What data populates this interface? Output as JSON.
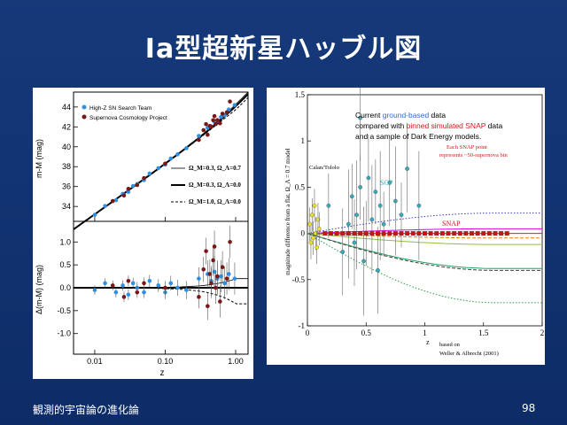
{
  "slide": {
    "title": "Ia型超新星ハッブル図",
    "footer_left": "観測的宇宙論の進化論",
    "page_number": "98"
  },
  "chart_data": [
    {
      "type": "scatter",
      "title": "",
      "xscale": "log",
      "xlim": [
        0.005,
        1.5
      ],
      "xlabel": "z",
      "x_ticks": [
        "0.01",
        "0.10",
        "1.00"
      ],
      "top": {
        "ylabel": "m-M (mag)",
        "ylim": [
          32.5,
          45.5
        ],
        "y_ticks": [
          "34",
          "36",
          "38",
          "40",
          "42",
          "44"
        ],
        "legend_series": [
          "High-Z SN Search Team",
          "Supernova Cosmology Project"
        ],
        "legend_models": [
          {
            "label": "Ω_M=0.3, Ω_Λ=0.7",
            "style": "solid-thin"
          },
          {
            "label": "Ω_M=0.3, Ω_Λ=0.0",
            "style": "solid-thick"
          },
          {
            "label": "Ω_M=1.0, Ω_Λ=0.0",
            "style": "dashed"
          }
        ]
      },
      "bottom": {
        "ylabel": "Δ(m-M) (mag)",
        "ylim": [
          -1.45,
          1.45
        ],
        "y_ticks": [
          "1.0",
          "0.5",
          "0.0",
          "-0.5",
          "-1.0"
        ]
      },
      "series": [
        {
          "name": "High-Z SN Search Team",
          "color": "#2f8fe0",
          "points": [
            [
              0.01,
              -0.05
            ],
            [
              0.014,
              0.1
            ],
            [
              0.02,
              -0.1
            ],
            [
              0.025,
              0.05
            ],
            [
              0.03,
              -0.15
            ],
            [
              0.035,
              0.1
            ],
            [
              0.04,
              0.0
            ],
            [
              0.05,
              -0.1
            ],
            [
              0.06,
              0.15
            ],
            [
              0.08,
              0.05
            ],
            [
              0.1,
              -0.1
            ],
            [
              0.12,
              0.1
            ],
            [
              0.15,
              0.0
            ],
            [
              0.2,
              -0.05
            ],
            [
              0.3,
              0.2
            ],
            [
              0.4,
              0.3
            ],
            [
              0.45,
              0.15
            ],
            [
              0.5,
              0.35
            ],
            [
              0.55,
              0.2
            ],
            [
              0.62,
              0.25
            ],
            [
              0.7,
              0.1
            ],
            [
              0.8,
              0.3
            ],
            [
              0.97,
              0.2
            ]
          ]
        },
        {
          "name": "Supernova Cosmology Project",
          "color": "#7a1616",
          "points": [
            [
              0.018,
              0.05
            ],
            [
              0.026,
              -0.2
            ],
            [
              0.03,
              0.15
            ],
            [
              0.04,
              -0.1
            ],
            [
              0.05,
              0.1
            ],
            [
              0.1,
              0.0
            ],
            [
              0.3,
              -0.2
            ],
            [
              0.35,
              0.4
            ],
            [
              0.38,
              0.8
            ],
            [
              0.4,
              -0.4
            ],
            [
              0.43,
              0.3
            ],
            [
              0.45,
              0.1
            ],
            [
              0.48,
              0.6
            ],
            [
              0.5,
              0.9
            ],
            [
              0.52,
              0.0
            ],
            [
              0.55,
              0.25
            ],
            [
              0.6,
              -0.3
            ],
            [
              0.65,
              0.45
            ],
            [
              0.75,
              0.2
            ],
            [
              0.83,
              1.0
            ]
          ]
        }
      ],
      "models": [
        {
          "label": "Ω_M=0.3, Ω_Λ=0.7",
          "residual_at_z1": 0.2
        },
        {
          "label": "Ω_M=0.3, Ω_Λ=0.0",
          "residual_at_z1": 0.0
        },
        {
          "label": "Ω_M=1.0, Ω_Λ=0.0",
          "residual_at_z1": -0.35
        }
      ]
    },
    {
      "type": "scatter",
      "title": "",
      "xlim": [
        0,
        2
      ],
      "ylim": [
        -1,
        1.5
      ],
      "x_ticks": [
        "0",
        "0.5",
        "1",
        "1.5",
        "2"
      ],
      "y_ticks": [
        "1.5",
        "1",
        "0.5",
        "0",
        "-0.5",
        "-1"
      ],
      "xlabel": "z",
      "ylabel": "magnitude difference from a flat, Ω_Λ = 0.7 model",
      "description_lines": [
        {
          "prefix": "Current ",
          "highlight": "ground-based",
          "suffix": " data",
          "color": "#2f6fd0"
        },
        {
          "prefix": "compared with ",
          "highlight": "binned simulated SNAP",
          "suffix": " data",
          "color": "#d01818"
        },
        {
          "prefix": "and a sample of Dark Energy models.",
          "highlight": "",
          "suffix": "",
          "color": "#000000"
        }
      ],
      "note_lines": [
        "Each SNAP point",
        "represents ~50-supernova bin"
      ],
      "labels": {
        "calan": "Calan/Tololo",
        "scp": "SCP",
        "snap": "SNAP"
      },
      "credit_lines": [
        "based on",
        "Weller & Albrecht (2001)"
      ],
      "series": [
        {
          "name": "Calan/Tololo",
          "color": "#f0e020",
          "points": [
            [
              0.02,
              0.1
            ],
            [
              0.03,
              -0.1
            ],
            [
              0.04,
              0.2
            ],
            [
              0.05,
              -0.05
            ],
            [
              0.06,
              0.3
            ],
            [
              0.07,
              0.0
            ],
            [
              0.08,
              -0.15
            ],
            [
              0.09,
              0.15
            ],
            [
              0.1,
              0.05
            ]
          ]
        },
        {
          "name": "SCP",
          "color": "#3aa8b8",
          "points": [
            [
              0.18,
              0.3
            ],
            [
              0.3,
              -0.2
            ],
            [
              0.35,
              0.1
            ],
            [
              0.38,
              0.4
            ],
            [
              0.4,
              -0.1
            ],
            [
              0.42,
              0.2
            ],
            [
              0.45,
              0.5
            ],
            [
              0.45,
              1.25
            ],
            [
              0.48,
              -0.3
            ],
            [
              0.5,
              0.0
            ],
            [
              0.52,
              0.6
            ],
            [
              0.55,
              0.15
            ],
            [
              0.58,
              0.45
            ],
            [
              0.6,
              -0.4
            ],
            [
              0.62,
              0.3
            ],
            [
              0.65,
              0.1
            ],
            [
              0.7,
              0.55
            ],
            [
              0.75,
              0.35
            ],
            [
              0.8,
              0.2
            ],
            [
              0.85,
              0.7
            ],
            [
              0.95,
              0.3
            ]
          ]
        },
        {
          "name": "SNAP",
          "color": "#c01818",
          "points": [
            [
              0.15,
              0.0
            ],
            [
              0.2,
              0.0
            ],
            [
              0.25,
              0.0
            ],
            [
              0.3,
              0.0
            ],
            [
              0.35,
              0.0
            ],
            [
              0.4,
              0.0
            ],
            [
              0.45,
              0.0
            ],
            [
              0.5,
              0.0
            ],
            [
              0.55,
              0.0
            ],
            [
              0.6,
              0.0
            ],
            [
              0.65,
              0.0
            ],
            [
              0.7,
              0.0
            ],
            [
              0.75,
              0.0
            ],
            [
              0.8,
              0.0
            ],
            [
              0.85,
              0.0
            ],
            [
              0.9,
              0.0
            ],
            [
              0.95,
              0.0
            ],
            [
              1.0,
              0.0
            ],
            [
              1.05,
              0.0
            ],
            [
              1.1,
              0.0
            ],
            [
              1.15,
              0.0
            ],
            [
              1.2,
              0.0
            ],
            [
              1.25,
              0.0
            ],
            [
              1.3,
              0.0
            ],
            [
              1.35,
              0.0
            ],
            [
              1.4,
              0.0
            ],
            [
              1.45,
              0.0
            ],
            [
              1.5,
              0.0
            ],
            [
              1.55,
              0.0
            ],
            [
              1.6,
              0.0
            ],
            [
              1.65,
              0.0
            ],
            [
              1.7,
              0.0
            ]
          ]
        }
      ],
      "models": [
        {
          "color": "#3a3ad0",
          "style": "dotted",
          "end_value": 0.22
        },
        {
          "color": "#e000e0",
          "style": "solid",
          "end_value": 0.05
        },
        {
          "color": "#d02020",
          "style": "solid",
          "end_value": 0.0
        },
        {
          "color": "#e08000",
          "style": "dashed",
          "end_value": -0.05
        },
        {
          "color": "#90c040",
          "style": "solid",
          "end_value": -0.12
        },
        {
          "color": "#20a060",
          "style": "solid",
          "end_value": -0.38
        },
        {
          "color": "#404040",
          "style": "dashed",
          "end_value": -0.4
        },
        {
          "color": "#20a040",
          "style": "dotted",
          "end_value": -0.75
        }
      ]
    }
  ]
}
